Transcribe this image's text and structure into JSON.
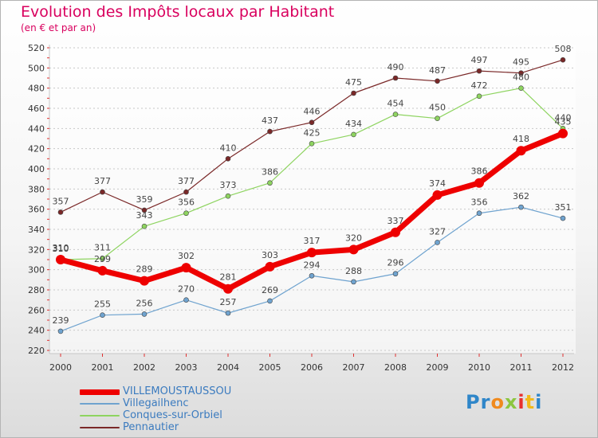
{
  "title": "Evolution des Impôts locaux par Habitant",
  "subtitle": "(en € et par an)",
  "logo": {
    "text": "Proxiti",
    "letter_colors": [
      "#2f86c9",
      "#2f86c9",
      "#f08a1e",
      "#8cc63f",
      "#e8302e",
      "#f2b91a",
      "#2f86c9"
    ]
  },
  "chart_data": {
    "type": "line",
    "title": "Evolution des Impôts locaux par Habitant",
    "subtitle": "(en € et par an)",
    "xlabel": "",
    "ylabel": "",
    "x": [
      "2000",
      "2001",
      "2002",
      "2003",
      "2004",
      "2005",
      "2006",
      "2007",
      "2008",
      "2009",
      "2010",
      "2011",
      "2012"
    ],
    "ylim": [
      220,
      520
    ],
    "yticks": [
      220,
      240,
      260,
      280,
      300,
      320,
      340,
      360,
      380,
      400,
      420,
      440,
      460,
      480,
      500,
      520
    ],
    "grid": "horizontal dotted",
    "legend_position": "bottom-left",
    "series": [
      {
        "name": "VILLEMOUSTAUSSOU",
        "color": "#ee0000",
        "values": [
          310,
          299,
          289,
          302,
          281,
          303,
          317,
          320,
          337,
          374,
          386,
          418,
          435
        ]
      },
      {
        "name": "Villegailhenc",
        "color": "#6fa3cf",
        "values": [
          239,
          255,
          256,
          270,
          257,
          269,
          294,
          288,
          296,
          327,
          356,
          362,
          351
        ]
      },
      {
        "name": "Conques-sur-Orbiel",
        "color": "#8ed460",
        "values": [
          310,
          311,
          343,
          356,
          373,
          386,
          425,
          434,
          454,
          450,
          472,
          480,
          440
        ]
      },
      {
        "name": "Pennautier",
        "color": "#7a2828",
        "values": [
          357,
          377,
          359,
          377,
          410,
          437,
          446,
          475,
          490,
          487,
          497,
          495,
          508
        ]
      }
    ]
  }
}
